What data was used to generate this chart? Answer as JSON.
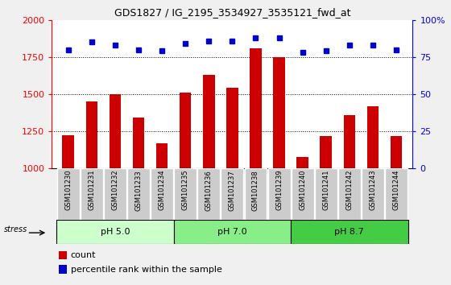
{
  "title": "GDS1827 / IG_2195_3534927_3535121_fwd_at",
  "samples": [
    "GSM101230",
    "GSM101231",
    "GSM101232",
    "GSM101233",
    "GSM101234",
    "GSM101235",
    "GSM101236",
    "GSM101237",
    "GSM101238",
    "GSM101239",
    "GSM101240",
    "GSM101241",
    "GSM101242",
    "GSM101243",
    "GSM101244"
  ],
  "counts": [
    1220,
    1450,
    1500,
    1340,
    1165,
    1510,
    1630,
    1540,
    1810,
    1750,
    1075,
    1215,
    1360,
    1415,
    1215
  ],
  "percentiles": [
    80,
    85,
    83,
    80,
    79,
    84,
    86,
    86,
    88,
    88,
    78,
    79,
    83,
    83,
    80
  ],
  "bar_color": "#cc0000",
  "dot_color": "#0000cc",
  "ylim_left": [
    1000,
    2000
  ],
  "ylim_right": [
    0,
    100
  ],
  "yticks_left": [
    1000,
    1250,
    1500,
    1750,
    2000
  ],
  "yticks_right": [
    0,
    25,
    50,
    75,
    100
  ],
  "grid_values": [
    1250,
    1500,
    1750
  ],
  "groups": [
    {
      "label": "pH 5.0",
      "start": 0,
      "end": 5,
      "color": "#ccffcc"
    },
    {
      "label": "pH 7.0",
      "start": 5,
      "end": 10,
      "color": "#88ee88"
    },
    {
      "label": "pH 8.7",
      "start": 10,
      "end": 15,
      "color": "#44cc44"
    }
  ],
  "stress_label": "stress",
  "legend_count_label": "count",
  "legend_pct_label": "percentile rank within the sample",
  "fig_bg_color": "#f0f0f0",
  "plot_bg_color": "#ffffff",
  "tick_bg_color": "#cccccc",
  "tick_sep_color": "#ffffff"
}
